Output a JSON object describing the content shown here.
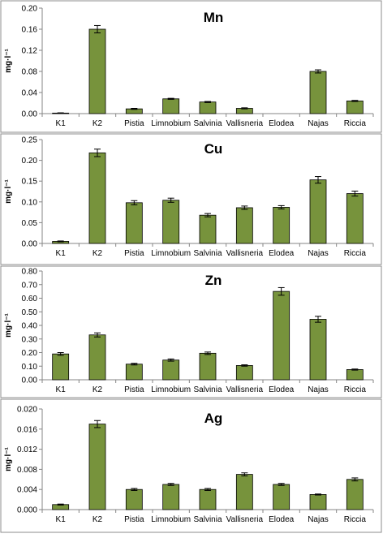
{
  "chart_data": [
    {
      "type": "bar",
      "title": "Mn",
      "ylabel": "mg·l⁻¹",
      "categories": [
        "K1",
        "K2",
        "Pistia",
        "Limnobium",
        "Salvinia",
        "Vallisneria",
        "Elodea",
        "Najas",
        "Riccia"
      ],
      "values": [
        0.001,
        0.16,
        0.009,
        0.028,
        0.022,
        0.01,
        0,
        0.08,
        0.024
      ],
      "errors": [
        0.0005,
        0.007,
        0.001,
        0.001,
        0.001,
        0.001,
        0,
        0.003,
        0.001
      ],
      "ylim": [
        0,
        0.2
      ],
      "yticks": [
        "0.00",
        "0.04",
        "0.08",
        "0.12",
        "0.16",
        "0.20"
      ],
      "bar_color": "#77933c",
      "grid": false
    },
    {
      "type": "bar",
      "title": "Cu",
      "ylabel": "mg·l⁻¹",
      "categories": [
        "K1",
        "K2",
        "Pistia",
        "Limnobium",
        "Salvinia",
        "Vallisneria",
        "Elodea",
        "Najas",
        "Riccia"
      ],
      "values": [
        0.005,
        0.218,
        0.098,
        0.104,
        0.068,
        0.086,
        0.087,
        0.153,
        0.12
      ],
      "errors": [
        0.001,
        0.009,
        0.005,
        0.005,
        0.004,
        0.004,
        0.004,
        0.008,
        0.006
      ],
      "ylim": [
        0,
        0.25
      ],
      "yticks": [
        "0.00",
        "0.05",
        "0.10",
        "0.15",
        "0.20",
        "0.25"
      ],
      "bar_color": "#77933c",
      "grid": false
    },
    {
      "type": "bar",
      "title": "Zn",
      "ylabel": "mg·l⁻¹",
      "categories": [
        "K1",
        "K2",
        "Pistia",
        "Limnobium",
        "Salvinia",
        "Vallisneria",
        "Elodea",
        "Najas",
        "Riccia"
      ],
      "values": [
        0.19,
        0.33,
        0.115,
        0.145,
        0.195,
        0.105,
        0.65,
        0.445,
        0.075
      ],
      "errors": [
        0.01,
        0.015,
        0.006,
        0.008,
        0.009,
        0.005,
        0.028,
        0.022,
        0.004
      ],
      "ylim": [
        0,
        0.8
      ],
      "yticks": [
        "0.00",
        "0.10",
        "0.20",
        "0.30",
        "0.40",
        "0.50",
        "0.60",
        "0.70",
        "0.80"
      ],
      "bar_color": "#77933c",
      "grid": false
    },
    {
      "type": "bar",
      "title": "Ag",
      "ylabel": "mg·l⁻¹",
      "categories": [
        "K1",
        "K2",
        "Pistia",
        "Limnobium",
        "Salvinia",
        "Vallisneria",
        "Elodea",
        "Najas",
        "Riccia"
      ],
      "values": [
        0.001,
        0.017,
        0.004,
        0.005,
        0.004,
        0.007,
        0.005,
        0.003,
        0.006
      ],
      "errors": [
        0.0001,
        0.0007,
        0.0002,
        0.0002,
        0.0002,
        0.0003,
        0.0002,
        0.0001,
        0.0003
      ],
      "ylim": [
        0,
        0.02
      ],
      "yticks": [
        "0.000",
        "0.004",
        "0.008",
        "0.012",
        "0.016",
        "0.020"
      ],
      "bar_color": "#77933c",
      "grid": false
    }
  ]
}
